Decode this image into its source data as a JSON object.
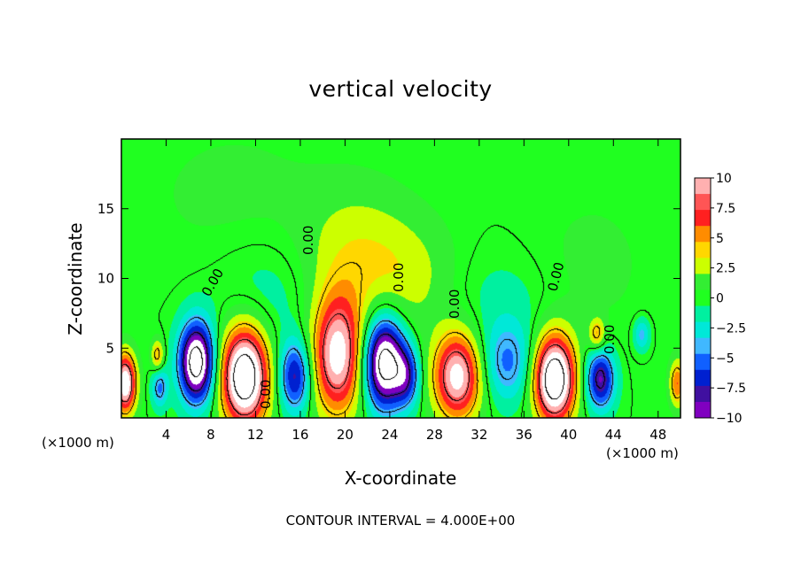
{
  "chart_data": {
    "type": "heatmap",
    "title": "vertical velocity",
    "xlabel": "X-coordinate",
    "ylabel": "Z-coordinate",
    "x_multiplier_left": "(×1000 m)",
    "x_multiplier_right": "(×1000 m)",
    "xlim": [
      0,
      50
    ],
    "ylim": [
      0,
      20
    ],
    "x_ticks": [
      4,
      8,
      12,
      16,
      20,
      24,
      28,
      32,
      36,
      40,
      44,
      48
    ],
    "y_ticks": [
      5,
      10,
      15
    ],
    "colorbar": {
      "range": [
        -10,
        10
      ],
      "ticks": [
        "10",
        "7.5",
        "5",
        "2.5",
        "0",
        "−2.5",
        "−5",
        "−7.5",
        "−10"
      ],
      "colors": [
        "#ffb0b0",
        "#ff5555",
        "#ff2020",
        "#ff8c00",
        "#ffd700",
        "#ccff00",
        "#33ee33",
        "#20ff20",
        "#00f0a0",
        "#00e8d8",
        "#40b8ff",
        "#1060ff",
        "#0020d0",
        "#4010a0",
        "#8000c0"
      ]
    },
    "contour_label": "0.00",
    "footer": "CONTOUR INTERVAL = 4.000E+00",
    "cells": [
      {
        "x": 0.3,
        "z": 2.5,
        "w": 12,
        "sx": 0.7,
        "sz": 1.5
      },
      {
        "x": 3.2,
        "z": 4.5,
        "w": 5,
        "sx": 0.4,
        "sz": 0.8
      },
      {
        "x": 3.4,
        "z": 2.2,
        "w": -5,
        "sx": 0.5,
        "sz": 1.0
      },
      {
        "x": 6.7,
        "z": 4.0,
        "w": -14,
        "sx": 1.1,
        "sz": 2.0
      },
      {
        "x": 11.0,
        "z": 3.0,
        "w": 15,
        "sx": 1.5,
        "sz": 2.5
      },
      {
        "x": 15.5,
        "z": 3.0,
        "w": -8,
        "sx": 1.0,
        "sz": 1.8
      },
      {
        "x": 19.3,
        "z": 4.5,
        "w": 11,
        "sx": 1.6,
        "sz": 3.0
      },
      {
        "x": 23.5,
        "z": 4.0,
        "w": -14,
        "sx": 1.3,
        "sz": 2.3
      },
      {
        "x": 25.5,
        "z": 3.0,
        "w": -6,
        "sx": 0.8,
        "sz": 1.5
      },
      {
        "x": 30.0,
        "z": 3.0,
        "w": 11,
        "sx": 1.5,
        "sz": 2.2
      },
      {
        "x": 34.5,
        "z": 4.0,
        "w": -5,
        "sx": 1.6,
        "sz": 2.0
      },
      {
        "x": 38.7,
        "z": 2.8,
        "w": 15,
        "sx": 1.3,
        "sz": 2.2
      },
      {
        "x": 42.8,
        "z": 2.8,
        "w": -9,
        "sx": 0.9,
        "sz": 1.5
      },
      {
        "x": 42.5,
        "z": 6.0,
        "w": 5,
        "sx": 0.5,
        "sz": 0.8
      },
      {
        "x": 46.5,
        "z": 6.0,
        "w": -4,
        "sx": 0.5,
        "sz": 0.8
      },
      {
        "x": 49.7,
        "z": 2.5,
        "w": 6,
        "sx": 0.5,
        "sz": 1.2
      },
      {
        "x": 21.0,
        "z": 11.5,
        "w": 3,
        "sx": 3.5,
        "sz": 3.5
      },
      {
        "x": 26.0,
        "z": 10.0,
        "w": 2,
        "sx": 3.0,
        "sz": 3.0
      },
      {
        "x": 13.0,
        "z": 9.0,
        "w": -1.5,
        "sx": 3.5,
        "sz": 3.0
      },
      {
        "x": 34.0,
        "z": 8.5,
        "w": -1.2,
        "sx": 3.5,
        "sz": 2.5
      },
      {
        "x": 42.0,
        "z": 11.0,
        "w": 1.0,
        "sx": 4.0,
        "sz": 4.0
      },
      {
        "x": 10.0,
        "z": 16.0,
        "w": 1.0,
        "sx": 6.0,
        "sz": 4.0
      }
    ]
  }
}
